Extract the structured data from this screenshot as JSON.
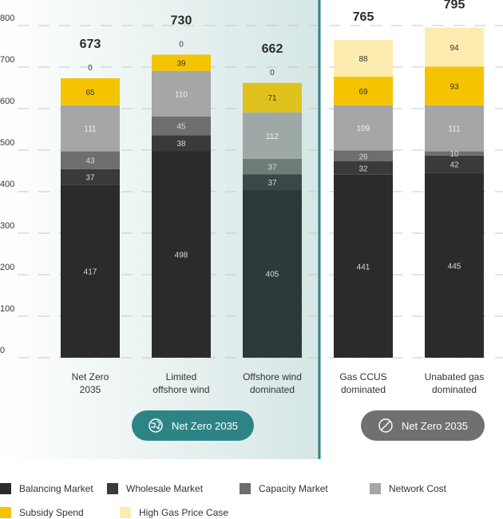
{
  "chart_data": {
    "type": "bar",
    "stacked": true,
    "ylim": [
      0,
      800
    ],
    "yticks": [
      0,
      100,
      200,
      300,
      400,
      500,
      600,
      700,
      800
    ],
    "grid": true,
    "categories": [
      [
        "Net Zero",
        "2035"
      ],
      [
        "Limited",
        "offshore wind"
      ],
      [
        "Offshore wind",
        "dominated"
      ],
      [
        "Gas CCUS",
        "dominated"
      ],
      [
        "Unabated gas",
        "dominated"
      ]
    ],
    "totals": [
      "673",
      "730",
      "662",
      "765",
      "795"
    ],
    "series": [
      {
        "name": "Balancing Market",
        "color": "#2b2b2b",
        "values": [
          417,
          498,
          405,
          441,
          445
        ]
      },
      {
        "name": "Wholesale Market",
        "color": "#3a3a3a",
        "values": [
          37,
          38,
          37,
          32,
          42
        ]
      },
      {
        "name": "Capacity Market",
        "color": "#6e6e6e",
        "values": [
          43,
          45,
          37,
          26,
          10
        ]
      },
      {
        "name": "Network Cost",
        "color": "#a6a6a6",
        "values": [
          111,
          110,
          112,
          109,
          111
        ]
      },
      {
        "name": "Subsidy Spend",
        "color": "#f5c400",
        "values": [
          65,
          39,
          71,
          69,
          93
        ]
      },
      {
        "name": "High Gas Price Case",
        "color": "#fdecb0",
        "values": [
          0,
          0,
          0,
          88,
          94
        ]
      }
    ],
    "bar_colors_override": {
      "teal_group": {
        "Balancing Market": "#2c3b3a",
        "Wholesale Market": "#3a4948",
        "Capacity Market": "#6f7c7a",
        "Network Cost": "#9ea9a7",
        "Subsidy Spend": "#e0c21e"
      }
    },
    "zero_labels": [
      "0",
      "0",
      "0"
    ]
  },
  "badges": [
    {
      "label": "Net Zero 2035",
      "color": "#2e8485",
      "icon": "globe-icon"
    },
    {
      "label": "Net Zero 2035",
      "color": "#707070",
      "icon": "prohibited-icon"
    }
  ],
  "legend": [
    {
      "label": "Balancing Market",
      "color": "#2b2b2b"
    },
    {
      "label": "Wholesale Market",
      "color": "#3a3a3a"
    },
    {
      "label": "Capacity Market",
      "color": "#6e6e6e"
    },
    {
      "label": "Network Cost",
      "color": "#a6a6a6"
    },
    {
      "label": "Subsidy Spend",
      "color": "#f5c400"
    },
    {
      "label": "High Gas Price Case",
      "color": "#fdecb0"
    }
  ],
  "colors": {
    "divider": "#2e8485",
    "panel_gradient_start": "#ffffff",
    "panel_gradient_end": "#d5e6e5",
    "grid": "#c8c8c8",
    "total_label": "#2b2b2b"
  }
}
